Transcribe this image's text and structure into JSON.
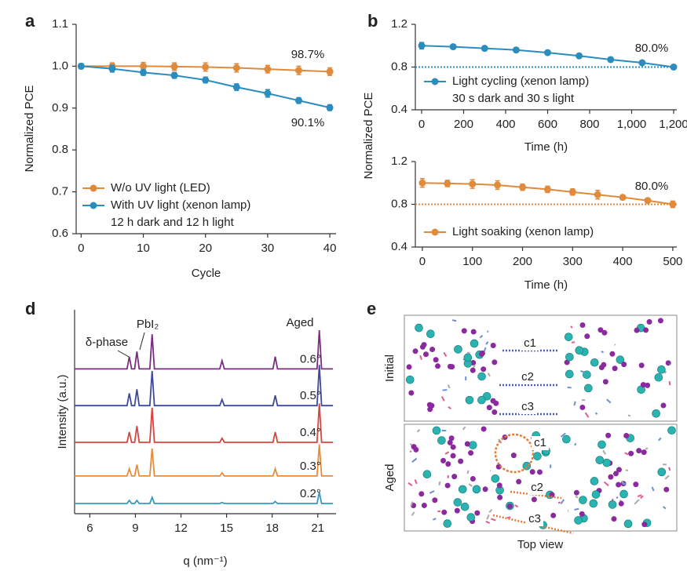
{
  "chart_data": [
    {
      "type": "line",
      "panel": "a",
      "xlabel": "Cycle",
      "ylabel": "Normalized PCE",
      "x": [
        0,
        5,
        10,
        15,
        20,
        25,
        30,
        35,
        40
      ],
      "xlim": [
        -0.8,
        41
      ],
      "xticks": [
        0,
        10,
        20,
        30,
        40
      ],
      "ylim": [
        0.6,
        1.1
      ],
      "yticks": [
        0.6,
        0.7,
        0.8,
        0.9,
        {
          "value": 1,
          "label": "1.0"
        },
        1.1
      ],
      "series": [
        {
          "name": "W/o UV light (LED)",
          "color": "#e08a3c",
          "values": [
            1.0,
            1.0,
            1.0,
            0.999,
            0.998,
            0.996,
            0.993,
            0.99,
            0.987
          ],
          "errors": [
            0.006,
            0.008,
            0.009,
            0.009,
            0.01,
            0.01,
            0.009,
            0.01,
            0.009
          ]
        },
        {
          "name": "With UV light (xenon lamp)",
          "color": "#2b8cbe",
          "values": [
            1.0,
            0.994,
            0.985,
            0.978,
            0.967,
            0.95,
            0.935,
            0.918,
            0.901
          ],
          "errors": [
            0.006,
            0.008,
            0.007,
            0.007,
            0.007,
            0.008,
            0.009,
            0.007,
            0.007
          ]
        }
      ],
      "legend_note": "12 h dark and 12 h light",
      "annotations": [
        "98.7%",
        "90.1%"
      ]
    },
    {
      "type": "line",
      "panel": "b",
      "xlabel": "Time (h)",
      "ylabel": "Normalized PCE",
      "x": [
        0,
        150,
        300,
        450,
        600,
        750,
        900,
        1050,
        1200
      ],
      "xlim": [
        -30,
        1215
      ],
      "xticks": [
        0,
        200,
        400,
        600,
        800,
        {
          "value": 1000,
          "label": "1,000"
        },
        {
          "value": 1200,
          "label": "1,200"
        }
      ],
      "ylim": [
        0.4,
        1.2
      ],
      "yticks": [
        0.4,
        0.8,
        1.2
      ],
      "ref_line": 0.8,
      "series": [
        {
          "name": "Light cycling (xenon lamp)",
          "color": "#2b8cbe",
          "values": [
            1.0,
            0.99,
            0.975,
            0.96,
            0.935,
            0.905,
            0.87,
            0.84,
            0.8
          ],
          "errors": [
            0.03,
            0.02,
            0.02,
            0.02,
            0.02,
            0.02,
            0.02,
            0.02,
            0.02
          ]
        }
      ],
      "legend_note": "30 s dark and 30 s light",
      "annotations": [
        "80.0%"
      ]
    },
    {
      "type": "line",
      "xlabel": "Time (h)",
      "x": [
        0,
        50,
        100,
        150,
        200,
        250,
        300,
        350,
        400,
        450,
        500
      ],
      "xlim": [
        -14,
        508
      ],
      "xticks": [
        0,
        100,
        200,
        300,
        400,
        500
      ],
      "ylim": [
        0.4,
        1.2
      ],
      "yticks": [
        0.4,
        0.8,
        1.2
      ],
      "ref_line": 0.8,
      "series": [
        {
          "name": "Light soaking (xenon lamp)",
          "color": "#e08a3c",
          "values": [
            1.0,
            0.995,
            0.99,
            0.98,
            0.96,
            0.94,
            0.915,
            0.89,
            0.865,
            0.835,
            0.8
          ],
          "errors": [
            0.04,
            0.03,
            0.04,
            0.04,
            0.03,
            0.03,
            0.03,
            0.04,
            0.02,
            0.02,
            0.03
          ]
        }
      ],
      "annotations": [
        "80.0%"
      ]
    },
    {
      "type": "line",
      "panel": "d",
      "xlabel": "q (nm⁻¹)",
      "ylabel": "Intensity (a.u.)",
      "x": [
        5,
        8.45,
        8.6,
        8.75,
        8.95,
        9.1,
        9.25,
        9.95,
        10.1,
        10.25,
        14.55,
        14.7,
        14.85,
        18.05,
        18.2,
        18.35,
        20.95,
        21.1,
        21.25,
        22
      ],
      "xlim": [
        5,
        22.2
      ],
      "xticks": [
        6,
        9,
        12,
        15,
        18,
        21
      ],
      "ylim": [
        0,
        10
      ],
      "series": [
        {
          "name": "0.6°",
          "color": "#7b2c83",
          "values": [
            7.1,
            7.1,
            7.7,
            7.1,
            7.1,
            7.95,
            7.1,
            7.1,
            8.8,
            7.1,
            7.1,
            7.5,
            7.1,
            7.1,
            7.7,
            7.1,
            7.1,
            9.0,
            7.1,
            7.1
          ]
        },
        {
          "name": "0.5°",
          "color": "#3f4a9a",
          "values": [
            5.3,
            5.3,
            5.9,
            5.3,
            5.3,
            6.1,
            5.3,
            5.3,
            7.0,
            5.3,
            5.3,
            5.6,
            5.3,
            5.3,
            5.8,
            5.3,
            5.3,
            7.3,
            5.3,
            5.3
          ]
        },
        {
          "name": "0.4°",
          "color": "#d9443f",
          "values": [
            3.5,
            3.5,
            4.0,
            3.5,
            3.5,
            4.3,
            3.5,
            3.5,
            5.2,
            3.5,
            3.5,
            3.7,
            3.5,
            3.5,
            4.0,
            3.5,
            3.5,
            5.4,
            3.5,
            3.5
          ]
        },
        {
          "name": "0.3°",
          "color": "#e88c3a",
          "values": [
            1.85,
            1.85,
            2.2,
            1.85,
            1.85,
            2.4,
            1.85,
            1.85,
            3.2,
            1.85,
            1.85,
            2.0,
            1.85,
            1.85,
            2.2,
            1.85,
            1.85,
            3.4,
            1.85,
            1.85
          ]
        },
        {
          "name": "0.2°",
          "color": "#2f9cc0",
          "values": [
            0.5,
            0.5,
            0.65,
            0.5,
            0.5,
            0.65,
            0.5,
            0.5,
            0.8,
            0.5,
            0.5,
            0.55,
            0.5,
            0.5,
            0.6,
            0.5,
            0.5,
            1.05,
            0.5,
            0.5
          ]
        }
      ],
      "annotations": [
        "δ-phase",
        "PbI₂",
        "Aged"
      ]
    }
  ],
  "panel_e": {
    "panel": "e",
    "rows": [
      {
        "label": "Initial",
        "bonds": [
          "c1",
          "c2",
          "c3"
        ]
      },
      {
        "label": "Aged",
        "bonds": [
          "c1",
          "c2",
          "c3"
        ]
      }
    ],
    "caption": "Top view"
  }
}
